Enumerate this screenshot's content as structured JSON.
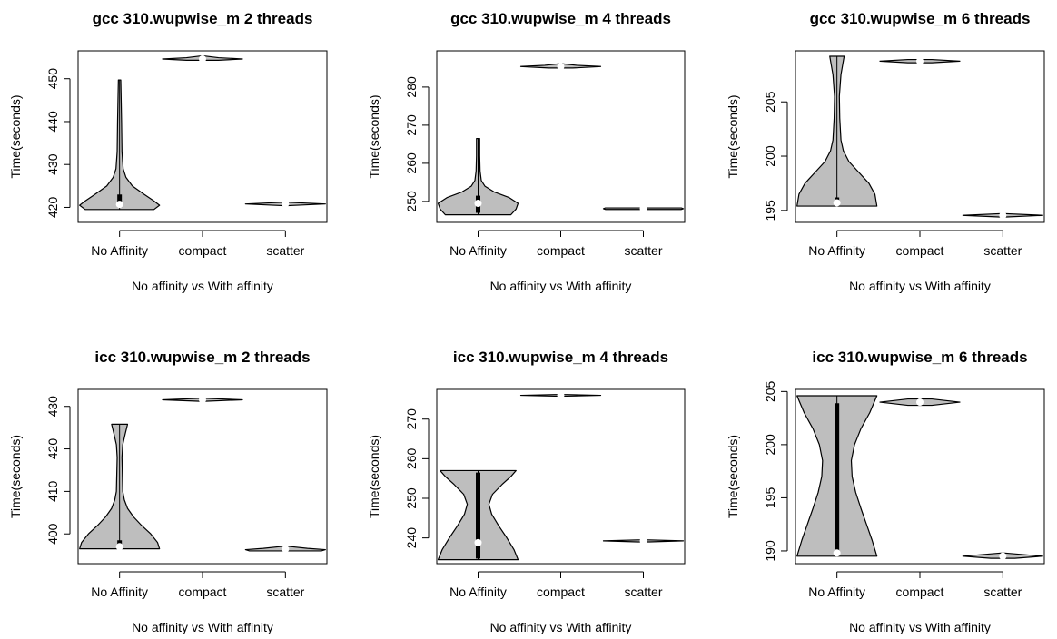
{
  "chart_data": [
    {
      "type": "violin",
      "title": "gcc 310.wupwise_m 2 threads",
      "xlabel": "No affinity vs With affinity",
      "ylabel": "Time(seconds)",
      "categories": [
        "No Affinity",
        "compact",
        "scatter"
      ],
      "ylim": [
        416.5,
        456.5
      ],
      "yticks": [
        420,
        430,
        440,
        450
      ],
      "groups": [
        {
          "min": 419.5,
          "max": 449.7,
          "q1": 420.0,
          "q3": 423.0,
          "median": 420.7,
          "profile": [
            [
              419.5,
              0.86
            ],
            [
              420.5,
              1.0
            ],
            [
              421.5,
              0.86
            ],
            [
              423.0,
              0.62
            ],
            [
              425.0,
              0.32
            ],
            [
              427.0,
              0.16
            ],
            [
              429.0,
              0.09
            ],
            [
              433.0,
              0.06
            ],
            [
              440.0,
              0.05
            ],
            [
              445.0,
              0.04
            ],
            [
              449.7,
              0.03
            ]
          ]
        },
        {
          "min": 454.3,
          "max": 455.3,
          "q1": 454.5,
          "q3": 454.9,
          "median": 454.6,
          "profile": [
            [
              454.3,
              0.4
            ],
            [
              454.6,
              1.0
            ],
            [
              454.9,
              0.4
            ],
            [
              455.3,
              0.05
            ]
          ]
        },
        {
          "min": 420.4,
          "max": 421.2,
          "q1": 420.6,
          "q3": 420.9,
          "median": 420.8,
          "profile": [
            [
              420.4,
              0.05
            ],
            [
              420.8,
              1.0
            ],
            [
              421.2,
              0.05
            ]
          ]
        }
      ]
    },
    {
      "type": "violin",
      "title": "gcc 310.wupwise_m 4 threads",
      "xlabel": "No affinity vs With affinity",
      "ylabel": "Time(seconds)",
      "categories": [
        "No Affinity",
        "compact",
        "scatter"
      ],
      "ylim": [
        244.5,
        289.5
      ],
      "yticks": [
        250,
        260,
        270,
        280
      ],
      "groups": [
        {
          "min": 246.5,
          "max": 266.5,
          "q1": 247.0,
          "q3": 251.5,
          "median": 249.5,
          "profile": [
            [
              246.5,
              0.82
            ],
            [
              248.0,
              0.95
            ],
            [
              249.5,
              1.0
            ],
            [
              251.0,
              0.78
            ],
            [
              252.5,
              0.4
            ],
            [
              254.0,
              0.17
            ],
            [
              255.5,
              0.08
            ],
            [
              258.0,
              0.05
            ],
            [
              262.0,
              0.04
            ],
            [
              266.5,
              0.04
            ]
          ]
        },
        {
          "min": 285.0,
          "max": 286.1,
          "q1": 285.2,
          "q3": 285.6,
          "median": 285.4,
          "profile": [
            [
              285.0,
              0.3
            ],
            [
              285.4,
              1.0
            ],
            [
              285.7,
              0.4
            ],
            [
              286.1,
              0.04
            ]
          ]
        },
        {
          "min": 247.9,
          "max": 248.3,
          "q1": 248.0,
          "q3": 248.2,
          "median": 248.1,
          "profile": [
            [
              247.9,
              0.95
            ],
            [
              248.1,
              1.0
            ],
            [
              248.3,
              0.95
            ]
          ]
        }
      ]
    },
    {
      "type": "violin",
      "title": "gcc 310.wupwise_m 6 threads",
      "xlabel": "No affinity vs With affinity",
      "ylabel": "Time(seconds)",
      "categories": [
        "No Affinity",
        "compact",
        "scatter"
      ],
      "ylim": [
        193.9,
        209.7
      ],
      "yticks": [
        195,
        200,
        205
      ],
      "groups": [
        {
          "min": 195.4,
          "max": 209.2,
          "q1": 195.6,
          "q3": 196.2,
          "median": 195.7,
          "profile": [
            [
              195.4,
              1.0
            ],
            [
              196.5,
              0.95
            ],
            [
              197.5,
              0.8
            ],
            [
              198.5,
              0.55
            ],
            [
              199.5,
              0.3
            ],
            [
              200.5,
              0.16
            ],
            [
              201.5,
              0.1
            ],
            [
              203.5,
              0.07
            ],
            [
              205.5,
              0.06
            ],
            [
              207.5,
              0.1
            ],
            [
              209.2,
              0.18
            ]
          ]
        },
        {
          "min": 208.6,
          "max": 208.9,
          "q1": 208.7,
          "q3": 208.8,
          "median": 208.75,
          "profile": [
            [
              208.6,
              0.3
            ],
            [
              208.75,
              1.0
            ],
            [
              208.9,
              0.3
            ]
          ]
        },
        {
          "min": 194.4,
          "max": 194.7,
          "q1": 194.5,
          "q3": 194.6,
          "median": 194.55,
          "profile": [
            [
              194.4,
              0.1
            ],
            [
              194.55,
              1.0
            ],
            [
              194.7,
              0.1
            ]
          ]
        }
      ]
    },
    {
      "type": "violin",
      "title": "icc 310.wupwise_m 2 threads",
      "xlabel": "No affinity vs With affinity",
      "ylabel": "Time(seconds)",
      "categories": [
        "No Affinity",
        "compact",
        "scatter"
      ],
      "ylim": [
        393.0,
        434.0
      ],
      "yticks": [
        400,
        410,
        420,
        430
      ],
      "groups": [
        {
          "min": 396.5,
          "max": 425.8,
          "q1": 396.8,
          "q3": 398.5,
          "median": 397.0,
          "profile": [
            [
              396.5,
              1.0
            ],
            [
              398.0,
              0.95
            ],
            [
              400.0,
              0.78
            ],
            [
              402.0,
              0.55
            ],
            [
              404.0,
              0.35
            ],
            [
              406.0,
              0.2
            ],
            [
              408.0,
              0.12
            ],
            [
              410.0,
              0.08
            ],
            [
              414.0,
              0.07
            ],
            [
              418.0,
              0.06
            ],
            [
              421.0,
              0.08
            ],
            [
              423.5,
              0.14
            ],
            [
              425.8,
              0.2
            ]
          ]
        },
        {
          "min": 431.2,
          "max": 431.9,
          "q1": 431.4,
          "q3": 431.7,
          "median": 431.55,
          "profile": [
            [
              431.2,
              0.05
            ],
            [
              431.55,
              1.0
            ],
            [
              431.9,
              0.05
            ]
          ]
        },
        {
          "min": 396.0,
          "max": 397.1,
          "q1": 396.2,
          "q3": 396.7,
          "median": 396.45,
          "profile": [
            [
              396.0,
              0.9
            ],
            [
              396.3,
              1.0
            ],
            [
              396.6,
              0.55
            ],
            [
              397.1,
              0.05
            ]
          ]
        }
      ]
    },
    {
      "type": "violin",
      "title": "icc 310.wupwise_m 4 threads",
      "xlabel": "No affinity vs With affinity",
      "ylabel": "Time(seconds)",
      "categories": [
        "No Affinity",
        "compact",
        "scatter"
      ],
      "ylim": [
        233.5,
        277.5
      ],
      "yticks": [
        240,
        250,
        260,
        270
      ],
      "groups": [
        {
          "min": 234.5,
          "max": 257.0,
          "q1": 234.8,
          "q3": 256.5,
          "median": 238.8,
          "profile": [
            [
              234.5,
              1.0
            ],
            [
              237.0,
              0.9
            ],
            [
              240.0,
              0.72
            ],
            [
              243.0,
              0.52
            ],
            [
              246.0,
              0.34
            ],
            [
              248.5,
              0.27
            ],
            [
              251.0,
              0.36
            ],
            [
              253.5,
              0.6
            ],
            [
              255.5,
              0.82
            ],
            [
              257.0,
              0.95
            ]
          ]
        },
        {
          "min": 275.8,
          "max": 276.2,
          "q1": 275.9,
          "q3": 276.1,
          "median": 276.0,
          "profile": [
            [
              275.8,
              0.15
            ],
            [
              276.0,
              1.0
            ],
            [
              276.2,
              0.15
            ]
          ]
        },
        {
          "min": 239.0,
          "max": 239.5,
          "q1": 239.1,
          "q3": 239.4,
          "median": 239.25,
          "profile": [
            [
              239.0,
              0.15
            ],
            [
              239.25,
              1.0
            ],
            [
              239.5,
              0.15
            ]
          ]
        }
      ]
    },
    {
      "type": "violin",
      "title": "icc 310.wupwise_m 6 threads",
      "xlabel": "No affinity vs With affinity",
      "ylabel": "Time(seconds)",
      "categories": [
        "No Affinity",
        "compact",
        "scatter"
      ],
      "ylim": [
        188.8,
        205.2
      ],
      "yticks": [
        190,
        195,
        200,
        205
      ],
      "groups": [
        {
          "min": 189.5,
          "max": 204.6,
          "q1": 189.7,
          "q3": 203.9,
          "median": 189.8,
          "profile": [
            [
              189.5,
              1.0
            ],
            [
              191.0,
              0.88
            ],
            [
              192.5,
              0.74
            ],
            [
              194.0,
              0.6
            ],
            [
              195.5,
              0.47
            ],
            [
              197.0,
              0.38
            ],
            [
              198.5,
              0.36
            ],
            [
              200.0,
              0.44
            ],
            [
              201.5,
              0.6
            ],
            [
              203.0,
              0.82
            ],
            [
              204.6,
              1.0
            ]
          ]
        },
        {
          "min": 203.7,
          "max": 204.3,
          "q1": 203.8,
          "q3": 204.2,
          "median": 204.0,
          "profile": [
            [
              203.7,
              0.3
            ],
            [
              204.0,
              1.0
            ],
            [
              204.3,
              0.3
            ]
          ]
        },
        {
          "min": 189.3,
          "max": 189.8,
          "q1": 189.4,
          "q3": 189.6,
          "median": 189.5,
          "profile": [
            [
              189.3,
              0.3
            ],
            [
              189.5,
              1.0
            ],
            [
              189.8,
              0.05
            ]
          ]
        }
      ]
    }
  ],
  "colors": {
    "violin_fill": "#bebebe",
    "box": "#000000",
    "median_dot": "#ffffff"
  }
}
